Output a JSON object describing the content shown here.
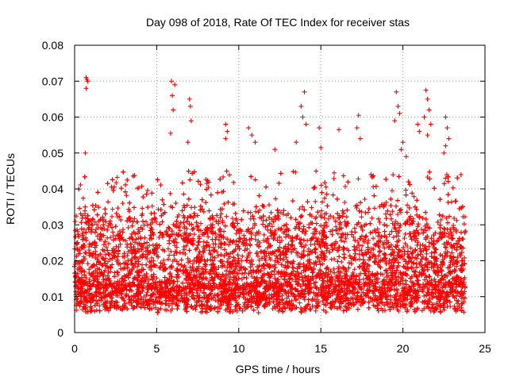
{
  "chart_data": {
    "type": "scatter",
    "title": "Day 098 of 2018, Rate Of TEC Index for receiver stas",
    "xlabel": "GPS time / hours",
    "ylabel": "ROTI / TECUs",
    "xlim": [
      0,
      25
    ],
    "ylim": [
      0,
      0.08
    ],
    "x_ticks": [
      "0",
      "5",
      "10",
      "15",
      "20",
      "25"
    ],
    "y_ticks": [
      "0",
      "0.01",
      "0.02",
      "0.03",
      "0.04",
      "0.05",
      "0.06",
      "0.07",
      "0.08"
    ],
    "grid": true,
    "marker": "+",
    "color": "#ff0000",
    "series": [
      {
        "name": "ROTI",
        "x_range": [
          0,
          23.8
        ],
        "points_approx": [
          [
            0.7,
            0.071
          ],
          [
            0.75,
            0.0705
          ],
          [
            0.8,
            0.07
          ],
          [
            0.7,
            0.068
          ],
          [
            0.65,
            0.05
          ],
          [
            5.9,
            0.07
          ],
          [
            6.1,
            0.069
          ],
          [
            5.95,
            0.066
          ],
          [
            6.0,
            0.062
          ],
          [
            5.85,
            0.0555
          ],
          [
            7.0,
            0.065
          ],
          [
            7.05,
            0.063
          ],
          [
            7.1,
            0.059
          ],
          [
            6.9,
            0.053
          ],
          [
            9.2,
            0.058
          ],
          [
            9.3,
            0.056
          ],
          [
            9.2,
            0.054
          ],
          [
            10.6,
            0.057
          ],
          [
            10.8,
            0.055
          ],
          [
            11.0,
            0.053
          ],
          [
            12.2,
            0.051
          ],
          [
            13.8,
            0.063
          ],
          [
            14.0,
            0.067
          ],
          [
            13.9,
            0.06
          ],
          [
            14.1,
            0.058
          ],
          [
            13.5,
            0.053
          ],
          [
            14.9,
            0.057
          ],
          [
            15.0,
            0.0515
          ],
          [
            16.1,
            0.0565
          ],
          [
            17.3,
            0.0605
          ],
          [
            17.2,
            0.057
          ],
          [
            17.4,
            0.054
          ],
          [
            19.6,
            0.067
          ],
          [
            19.7,
            0.063
          ],
          [
            19.8,
            0.061
          ],
          [
            19.5,
            0.059
          ],
          [
            20.0,
            0.053
          ],
          [
            19.9,
            0.051
          ],
          [
            20.2,
            0.049
          ],
          [
            21.4,
            0.0675
          ],
          [
            21.5,
            0.065
          ],
          [
            21.6,
            0.062
          ],
          [
            21.3,
            0.06
          ],
          [
            20.9,
            0.058
          ],
          [
            21.0,
            0.056
          ],
          [
            21.7,
            0.058
          ],
          [
            21.5,
            0.055
          ],
          [
            22.6,
            0.06
          ],
          [
            22.7,
            0.057
          ],
          [
            22.8,
            0.054
          ],
          [
            22.6,
            0.052
          ],
          [
            22.5,
            0.05
          ]
        ],
        "bulk_range_y": [
          0.004,
          0.03
        ]
      }
    ]
  }
}
